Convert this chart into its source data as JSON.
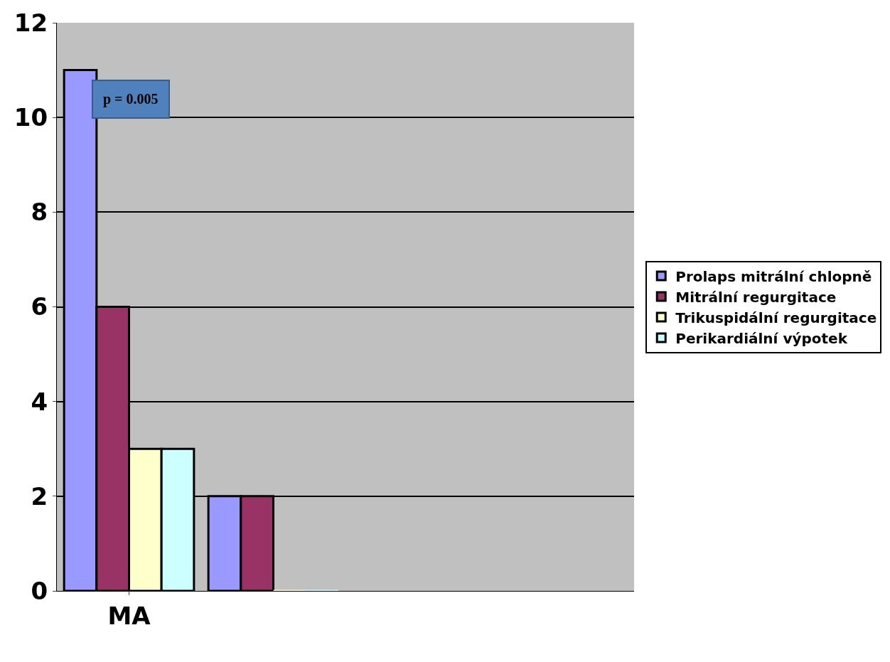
{
  "chart_data": {
    "type": "bar",
    "categories": [
      "MA",
      null,
      null,
      null
    ],
    "series": [
      {
        "name": "Prolaps mitrální chlopně",
        "color": "#9999ff",
        "values": [
          11,
          2,
          null,
          null
        ]
      },
      {
        "name": "Mitrální regurgitace",
        "color": "#993366",
        "values": [
          6,
          2,
          null,
          null
        ]
      },
      {
        "name": "Trikuspidální regurgitace",
        "color": "#ffffcc",
        "values": [
          3,
          0,
          null,
          null
        ]
      },
      {
        "name": "Perikardiální výpotek",
        "color": "#ccffff",
        "values": [
          3,
          0,
          null,
          null
        ]
      }
    ],
    "ylim": [
      0,
      12
    ],
    "yticks": [
      0,
      2,
      4,
      6,
      8,
      10,
      12
    ],
    "grid": "y",
    "legend": "right",
    "annotations": [
      "p = 0.005"
    ]
  }
}
